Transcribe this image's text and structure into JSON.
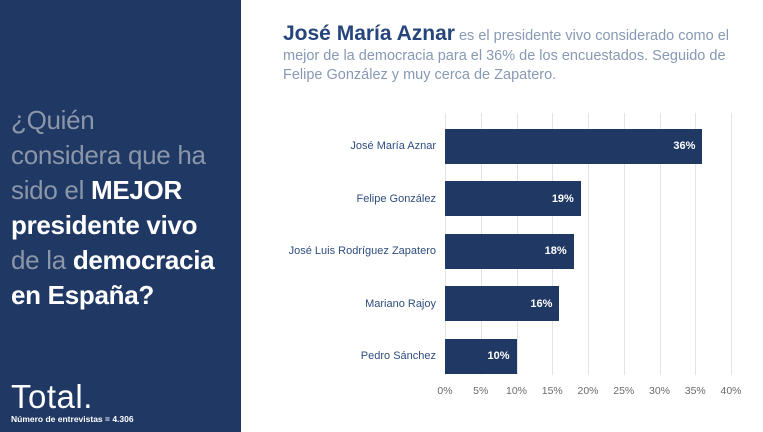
{
  "colors": {
    "navy": "#1f3864",
    "question_gray": "#8b96a9",
    "headline_accent": "#26457c",
    "headline_body": "#8799b4",
    "category_label": "#2e4d7e",
    "tick_gray": "#6b6b6b",
    "gridline": "#e3e3e3",
    "bar_value_text": "#ffffff"
  },
  "sidebar": {
    "question_lines": [
      [
        {
          "text": "¿Quién",
          "emphasis": false
        }
      ],
      [
        {
          "text": "considera que ha",
          "emphasis": false
        }
      ],
      [
        {
          "text": "sido el ",
          "emphasis": false
        },
        {
          "text": "MEJOR",
          "emphasis": true
        }
      ],
      [
        {
          "text": "presidente vivo",
          "emphasis": true
        }
      ],
      [
        {
          "text": "de la ",
          "emphasis": false
        },
        {
          "text": "democracia",
          "emphasis": true
        }
      ],
      [
        {
          "text": "en España?",
          "emphasis": true
        }
      ]
    ],
    "total_label": "Total.",
    "sample_note": "Número de entrevistas = 4.306"
  },
  "headline": {
    "emphasis": "José María Aznar",
    "rest": " es el presidente vivo considerado como el mejor de la democracia para el 36% de los encuestados. Seguido de Felipe González y muy cerca de Zapatero."
  },
  "chart_data": {
    "type": "bar",
    "orientation": "horizontal",
    "categories": [
      "José María Aznar",
      "Felipe González",
      "José Luis Rodríguez Zapatero",
      "Mariano Rajoy",
      "Pedro Sánchez"
    ],
    "values": [
      36,
      19,
      18,
      16,
      10
    ],
    "value_labels": [
      "36%",
      "19%",
      "18%",
      "16%",
      "10%"
    ],
    "xlim": [
      0,
      40
    ],
    "xtick_values": [
      0,
      5,
      10,
      15,
      20,
      25,
      30,
      35,
      40
    ],
    "xtick_labels": [
      "0%",
      "5%",
      "10%",
      "15%",
      "20%",
      "25%",
      "30%",
      "35%",
      "40%"
    ],
    "bar_color": "#1f3864",
    "grid": true,
    "legend_position": "none"
  }
}
